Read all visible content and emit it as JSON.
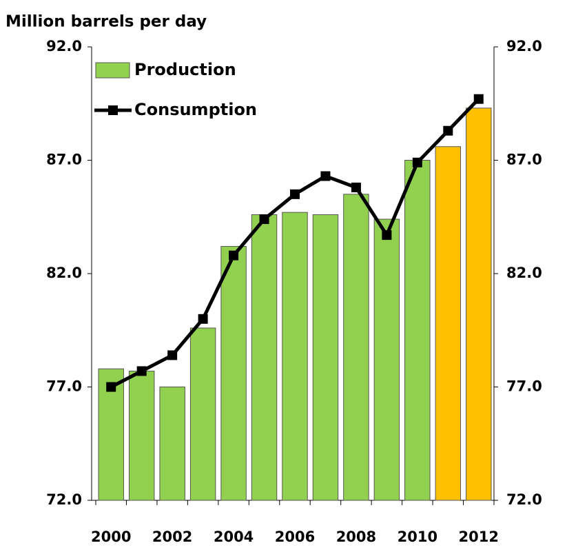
{
  "chart_data": {
    "type": "bar-line",
    "y_label": "Million barrels per day",
    "categories": [
      "2000",
      null,
      "2002",
      null,
      "2004",
      null,
      "2006",
      null,
      "2008",
      null,
      "2010",
      null,
      "2012"
    ],
    "series": [
      {
        "name": "Production",
        "type": "bar",
        "color": "#92d050",
        "colors": [
          "#92d050",
          "#92d050",
          "#92d050",
          "#92d050",
          "#92d050",
          "#92d050",
          "#92d050",
          "#92d050",
          "#92d050",
          "#92d050",
          "#92d050",
          "#ffc000",
          "#ffc000"
        ],
        "values": [
          77.8,
          77.7,
          77.0,
          79.6,
          83.2,
          84.6,
          84.7,
          84.6,
          85.5,
          84.4,
          87.0,
          87.6,
          89.3
        ]
      },
      {
        "name": "Consumption",
        "type": "line",
        "color": "#000000",
        "values": [
          77.0,
          77.7,
          78.4,
          80.0,
          82.8,
          84.4,
          85.5,
          86.3,
          85.8,
          83.7,
          86.9,
          88.3,
          89.7
        ]
      }
    ],
    "ylim": [
      72,
      92
    ],
    "yticks": [
      {
        "value": 72,
        "label": "72.0"
      },
      {
        "value": 77,
        "label": "77.0"
      },
      {
        "value": 82,
        "label": "82.0"
      },
      {
        "value": 87,
        "label": "87.0"
      },
      {
        "value": 92,
        "label": "92.0"
      }
    ],
    "y2lim": [
      72,
      92
    ],
    "y2ticks": [
      {
        "value": 72,
        "label": "72.0"
      },
      {
        "value": 77,
        "label": "77.0"
      },
      {
        "value": 82,
        "label": "82.0"
      },
      {
        "value": 87,
        "label": "87.0"
      },
      {
        "value": 92,
        "label": "92.0"
      }
    ],
    "legend": "top-left"
  }
}
